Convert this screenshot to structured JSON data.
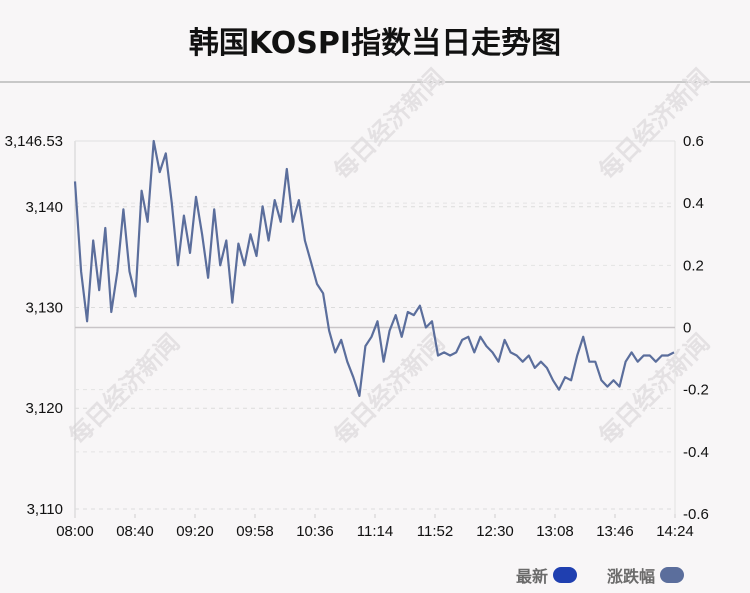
{
  "chart_data": {
    "type": "line",
    "title": "韩国KOSPI指数当日走势图",
    "x_ticks": [
      "08:00",
      "08:40",
      "09:20",
      "09:58",
      "10:36",
      "11:14",
      "11:52",
      "12:30",
      "13:08",
      "13:46",
      "14:24"
    ],
    "y_left_ticks": [
      {
        "value": 3146.53,
        "label": "3,146.53"
      },
      {
        "value": 3140,
        "label": "3,140"
      },
      {
        "value": 3130,
        "label": "3,130"
      },
      {
        "value": 3120,
        "label": "3,120"
      },
      {
        "value": 3110,
        "label": "3,110"
      }
    ],
    "y_left_range": [
      3109.5,
      3146.53
    ],
    "y_right_ticks": [
      0.6,
      0.4,
      0.2,
      0,
      -0.2,
      -0.4,
      -0.6
    ],
    "y_right_range": [
      -0.6,
      0.6
    ],
    "zero_reference_value": 3127.4,
    "grid": "horizontal-dashed",
    "legend_position": "bottom-right",
    "series": [
      {
        "name": "最新",
        "color": "#1f3fb0",
        "values": [
          3142.8,
          3133.5,
          3128.0,
          3136.0,
          3131.5,
          3137.0,
          3129.0,
          3133.0,
          3139.5,
          3133.5,
          3131.0,
          3141.5,
          3138.5,
          3146.5,
          3143.0,
          3145.0,
          3140.0,
          3134.0,
          3139.0,
          3135.5,
          3141.0,
          3137.0,
          3133.0,
          3139.5,
          3134.0,
          3136.5,
          3130.5,
          3136.0,
          3134.0,
          3137.0,
          3135.0,
          3139.5,
          3136.0,
          3140.0,
          3138.0,
          3143.0,
          3138.0,
          3140.0,
          3136.0,
          3134.0,
          3132.0,
          3131.0,
          3127.0,
          3125.0,
          3126.0,
          3124.0,
          3122.5,
          3120.5,
          3125.5,
          3126.5,
          3128.0,
          3124.0,
          3127.0,
          3128.5,
          3126.5,
          3129.0,
          3128.5,
          3129.5,
          3127.5,
          3128.0,
          3124.5,
          3125.0,
          3124.5,
          3125.0,
          3126.0,
          3126.5,
          3125.0,
          3126.5,
          3125.5,
          3125.0,
          3124.0,
          3126.0,
          3125.0,
          3124.5,
          3124.0,
          3124.5,
          3123.5,
          3124.0,
          3123.5,
          3122.0,
          3121.0,
          3122.5,
          3122.0,
          3124.5,
          3126.5,
          3124.0,
          3124.0,
          3122.0,
          3121.5,
          3122.0,
          3121.5,
          3124.0,
          3125.0,
          3124.0,
          3124.5,
          3124.5,
          3124.0,
          3124.5,
          3124.5,
          3124.8
        ],
        "show_line": false
      },
      {
        "name": "涨跌幅",
        "color": "#5b6e9c",
        "values": [
          0.47,
          0.18,
          0.02,
          0.28,
          0.12,
          0.32,
          0.05,
          0.18,
          0.38,
          0.18,
          0.1,
          0.44,
          0.34,
          0.6,
          0.5,
          0.56,
          0.4,
          0.2,
          0.36,
          0.24,
          0.42,
          0.3,
          0.16,
          0.38,
          0.2,
          0.28,
          0.08,
          0.27,
          0.2,
          0.3,
          0.23,
          0.39,
          0.28,
          0.41,
          0.34,
          0.51,
          0.34,
          0.41,
          0.28,
          0.21,
          0.14,
          0.11,
          -0.01,
          -0.08,
          -0.04,
          -0.11,
          -0.16,
          -0.22,
          -0.06,
          -0.03,
          0.02,
          -0.11,
          -0.01,
          0.04,
          -0.03,
          0.05,
          0.04,
          0.07,
          0.0,
          0.02,
          -0.09,
          -0.08,
          -0.09,
          -0.08,
          -0.04,
          -0.03,
          -0.08,
          -0.03,
          -0.06,
          -0.08,
          -0.11,
          -0.04,
          -0.08,
          -0.09,
          -0.11,
          -0.09,
          -0.13,
          -0.11,
          -0.13,
          -0.17,
          -0.2,
          -0.16,
          -0.17,
          -0.09,
          -0.03,
          -0.11,
          -0.11,
          -0.17,
          -0.19,
          -0.17,
          -0.19,
          -0.11,
          -0.08,
          -0.11,
          -0.09,
          -0.09,
          -0.11,
          -0.09,
          -0.09,
          -0.08
        ]
      }
    ]
  },
  "watermark": "每日经济新闻",
  "legend": {
    "items": [
      {
        "label": "最新",
        "color": "#1f3fb0"
      },
      {
        "label": "涨跌幅",
        "color": "#5b6e9c"
      }
    ]
  }
}
